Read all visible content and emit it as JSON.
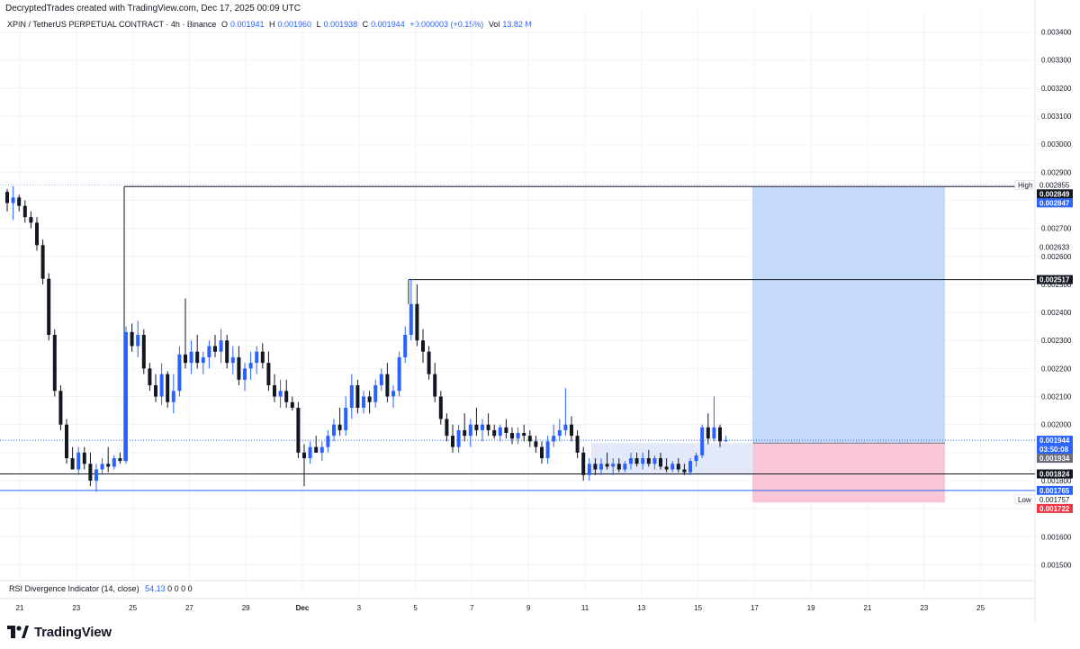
{
  "header": {
    "credit": "DecryptedTrades created with TradingView.com, Dec 17, 2025 00:09 UTC",
    "symbol": "XPIN / TetherUS PERPETUAL CONTRACT · 4h · Binance",
    "o_label": "O",
    "o_value": "0.001941",
    "h_label": "H",
    "h_value": "0.001960",
    "l_label": "L",
    "l_value": "0.001938",
    "c_label": "C",
    "c_value": "0.001944",
    "change": "+0.000003 (+0.15%)",
    "vol_label": "Vol",
    "vol_value": "13.82 M"
  },
  "rsi": {
    "title": "RSI Divergence Indicator (14, close)",
    "value": "54.13",
    "extras": "0 0 0 0"
  },
  "brand": {
    "name": "TradingView"
  },
  "colors": {
    "up": "#2962ff",
    "down": "#131722",
    "target": "#bbd4f7",
    "stop": "#f8bcd0",
    "range": "#dde3f7",
    "price_tag": "#2962ff",
    "dark_tag": "#131722",
    "gray_tag": "#6b6e78",
    "stop_tag": "#f23645"
  },
  "chart_data": {
    "type": "candlestick",
    "timeframe": "4h",
    "ylim": [
      0.00145,
      0.00345
    ],
    "yticks": [
      "0.003400",
      "0.003300",
      "0.003200",
      "0.003100",
      "0.003000",
      "0.002900",
      "0.002800",
      "0.002700",
      "0.002600",
      "0.002500",
      "0.002400",
      "0.002300",
      "0.002200",
      "0.002100",
      "0.002000",
      "0.001900",
      "0.001800",
      "0.001700",
      "0.001600",
      "0.001500"
    ],
    "xticks": [
      "21",
      "23",
      "25",
      "27",
      "29",
      "Dec",
      "3",
      "5",
      "7",
      "9",
      "11",
      "13",
      "15",
      "17",
      "19",
      "21",
      "23",
      "25"
    ],
    "candles": [
      [
        0.00283,
        0.00284,
        0.00276,
        0.00279
      ],
      [
        0.00279,
        0.00285,
        0.00273,
        0.00281
      ],
      [
        0.00281,
        0.00282,
        0.00276,
        0.00278
      ],
      [
        0.00278,
        0.0028,
        0.00272,
        0.00274
      ],
      [
        0.00274,
        0.00276,
        0.0027,
        0.00272
      ],
      [
        0.00272,
        0.00274,
        0.00262,
        0.00264
      ],
      [
        0.00264,
        0.00266,
        0.0025,
        0.00252
      ],
      [
        0.00252,
        0.00254,
        0.0023,
        0.00232
      ],
      [
        0.00232,
        0.00234,
        0.0021,
        0.00212
      ],
      [
        0.00212,
        0.00214,
        0.00198,
        0.002
      ],
      [
        0.002,
        0.00202,
        0.00186,
        0.00188
      ],
      [
        0.00188,
        0.00192,
        0.00184,
        0.00184
      ],
      [
        0.00184,
        0.00192,
        0.00182,
        0.0019
      ],
      [
        0.0019,
        0.00192,
        0.00184,
        0.00186
      ],
      [
        0.00186,
        0.0019,
        0.00178,
        0.0018
      ],
      [
        0.0018,
        0.00186,
        0.00176,
        0.00184
      ],
      [
        0.00184,
        0.00188,
        0.00182,
        0.00186
      ],
      [
        0.00186,
        0.00192,
        0.00183,
        0.00185
      ],
      [
        0.00185,
        0.00189,
        0.00184,
        0.00188
      ],
      [
        0.00188,
        0.0019,
        0.00186,
        0.00187
      ],
      [
        0.00187,
        0.00235,
        0.00186,
        0.00233
      ],
      [
        0.00233,
        0.00236,
        0.00226,
        0.00228
      ],
      [
        0.00228,
        0.00237,
        0.00224,
        0.00232
      ],
      [
        0.00232,
        0.00234,
        0.00218,
        0.0022
      ],
      [
        0.0022,
        0.00222,
        0.00212,
        0.00214
      ],
      [
        0.00214,
        0.00218,
        0.00208,
        0.0021
      ],
      [
        0.0021,
        0.00222,
        0.00207,
        0.00218
      ],
      [
        0.00218,
        0.00219,
        0.00206,
        0.00208
      ],
      [
        0.00208,
        0.00218,
        0.00204,
        0.00212
      ],
      [
        0.00212,
        0.00228,
        0.0021,
        0.00225
      ],
      [
        0.00225,
        0.00245,
        0.0022,
        0.00222
      ],
      [
        0.00222,
        0.0023,
        0.00218,
        0.00226
      ],
      [
        0.00226,
        0.00232,
        0.0022,
        0.00222
      ],
      [
        0.00222,
        0.00226,
        0.00218,
        0.00224
      ],
      [
        0.00224,
        0.0023,
        0.0022,
        0.00228
      ],
      [
        0.00228,
        0.00232,
        0.00224,
        0.00226
      ],
      [
        0.00226,
        0.00234,
        0.00222,
        0.0023
      ],
      [
        0.0023,
        0.00232,
        0.0022,
        0.00222
      ],
      [
        0.00222,
        0.00228,
        0.00218,
        0.00224
      ],
      [
        0.00224,
        0.00228,
        0.00214,
        0.00216
      ],
      [
        0.00216,
        0.00222,
        0.00212,
        0.0022
      ],
      [
        0.0022,
        0.00226,
        0.00216,
        0.00222
      ],
      [
        0.00222,
        0.00228,
        0.00218,
        0.00226
      ],
      [
        0.00226,
        0.00229,
        0.0022,
        0.00222
      ],
      [
        0.00222,
        0.00226,
        0.00212,
        0.00214
      ],
      [
        0.00214,
        0.00218,
        0.00208,
        0.0021
      ],
      [
        0.0021,
        0.00216,
        0.00206,
        0.00212
      ],
      [
        0.00212,
        0.00216,
        0.00206,
        0.00208
      ],
      [
        0.00208,
        0.0021,
        0.00205,
        0.00206
      ],
      [
        0.00206,
        0.00208,
        0.00188,
        0.0019
      ],
      [
        0.0019,
        0.00193,
        0.00178,
        0.00188
      ],
      [
        0.00188,
        0.00194,
        0.00186,
        0.00192
      ],
      [
        0.00192,
        0.00196,
        0.0019,
        0.0019
      ],
      [
        0.0019,
        0.00194,
        0.00187,
        0.00192
      ],
      [
        0.00192,
        0.00198,
        0.0019,
        0.00196
      ],
      [
        0.00196,
        0.00202,
        0.00194,
        0.002
      ],
      [
        0.002,
        0.00206,
        0.00196,
        0.00198
      ],
      [
        0.00198,
        0.0021,
        0.00196,
        0.00206
      ],
      [
        0.00206,
        0.00218,
        0.00202,
        0.00214
      ],
      [
        0.00214,
        0.00216,
        0.00204,
        0.00206
      ],
      [
        0.00206,
        0.00212,
        0.00204,
        0.0021
      ],
      [
        0.0021,
        0.00212,
        0.00204,
        0.00208
      ],
      [
        0.00208,
        0.00216,
        0.00206,
        0.00214
      ],
      [
        0.00214,
        0.0022,
        0.00212,
        0.00218
      ],
      [
        0.00218,
        0.00222,
        0.00208,
        0.0021
      ],
      [
        0.0021,
        0.00214,
        0.00206,
        0.00212
      ],
      [
        0.00212,
        0.00226,
        0.0021,
        0.00224
      ],
      [
        0.00224,
        0.00235,
        0.00222,
        0.00232
      ],
      [
        0.00232,
        0.00252,
        0.0023,
        0.00243
      ],
      [
        0.00243,
        0.0025,
        0.00228,
        0.0023
      ],
      [
        0.0023,
        0.00234,
        0.00222,
        0.00226
      ],
      [
        0.00226,
        0.00228,
        0.00216,
        0.00218
      ],
      [
        0.00218,
        0.00222,
        0.00208,
        0.0021
      ],
      [
        0.0021,
        0.00212,
        0.002,
        0.00202
      ],
      [
        0.00202,
        0.00204,
        0.00194,
        0.00196
      ],
      [
        0.00196,
        0.002,
        0.0019,
        0.00192
      ],
      [
        0.00192,
        0.002,
        0.0019,
        0.00198
      ],
      [
        0.00198,
        0.00204,
        0.00194,
        0.00196
      ],
      [
        0.00196,
        0.00202,
        0.00192,
        0.002
      ],
      [
        0.002,
        0.00206,
        0.00196,
        0.00198
      ],
      [
        0.00198,
        0.00202,
        0.00194,
        0.002
      ],
      [
        0.002,
        0.00204,
        0.00196,
        0.00198
      ],
      [
        0.00198,
        0.002,
        0.00195,
        0.00196
      ],
      [
        0.00196,
        0.002,
        0.00194,
        0.00199
      ],
      [
        0.00199,
        0.00202,
        0.00195,
        0.00197
      ],
      [
        0.00197,
        0.00199,
        0.00193,
        0.00195
      ],
      [
        0.00195,
        0.00199,
        0.00193,
        0.00197
      ],
      [
        0.00197,
        0.002,
        0.00194,
        0.00196
      ],
      [
        0.00196,
        0.00198,
        0.00192,
        0.00194
      ],
      [
        0.00194,
        0.00196,
        0.0019,
        0.00192
      ],
      [
        0.00192,
        0.00194,
        0.00186,
        0.00188
      ],
      [
        0.00188,
        0.00196,
        0.00186,
        0.00194
      ],
      [
        0.00194,
        0.002,
        0.00192,
        0.00196
      ],
      [
        0.00196,
        0.00202,
        0.00194,
        0.00198
      ],
      [
        0.00198,
        0.00213,
        0.00196,
        0.002
      ],
      [
        0.002,
        0.00203,
        0.00194,
        0.00196
      ],
      [
        0.00196,
        0.00198,
        0.00188,
        0.0019
      ],
      [
        0.0019,
        0.00192,
        0.0018,
        0.00182
      ],
      [
        0.00182,
        0.00188,
        0.0018,
        0.00186
      ],
      [
        0.00186,
        0.00188,
        0.00182,
        0.00184
      ],
      [
        0.00184,
        0.00188,
        0.00182,
        0.00186
      ],
      [
        0.00186,
        0.0019,
        0.00184,
        0.00185
      ],
      [
        0.00185,
        0.00188,
        0.00182,
        0.00186
      ],
      [
        0.00186,
        0.00188,
        0.00183,
        0.00184
      ],
      [
        0.00184,
        0.00187,
        0.00183,
        0.00186
      ],
      [
        0.00186,
        0.0019,
        0.00184,
        0.00188
      ],
      [
        0.00188,
        0.0019,
        0.00185,
        0.00186
      ],
      [
        0.00186,
        0.0019,
        0.00184,
        0.00188
      ],
      [
        0.00188,
        0.00191,
        0.00185,
        0.00186
      ],
      [
        0.00186,
        0.00189,
        0.00184,
        0.00188
      ],
      [
        0.00188,
        0.0019,
        0.00184,
        0.00185
      ],
      [
        0.00185,
        0.00188,
        0.00183,
        0.00184
      ],
      [
        0.00184,
        0.00187,
        0.00183,
        0.00186
      ],
      [
        0.00186,
        0.00188,
        0.00183,
        0.00184
      ],
      [
        0.00184,
        0.00186,
        0.00182,
        0.00183
      ],
      [
        0.00183,
        0.00188,
        0.00182,
        0.00187
      ],
      [
        0.00187,
        0.0019,
        0.00185,
        0.00189
      ],
      [
        0.00189,
        0.002,
        0.00188,
        0.00199
      ],
      [
        0.00199,
        0.00204,
        0.00193,
        0.00195
      ],
      [
        0.00195,
        0.0021,
        0.00194,
        0.00199
      ],
      [
        0.00199,
        0.002,
        0.00192,
        0.00194
      ],
      [
        0.001941,
        0.00196,
        0.001938,
        0.001944
      ]
    ],
    "horizontal_levels": [
      "0.002849",
      "0.002517",
      "0.001824",
      "0.001765"
    ],
    "price_axis_labels": [
      {
        "text": "High",
        "value": "0.002855",
        "style": "plain"
      },
      {
        "text": "",
        "value": "0.002849",
        "style": "dark"
      },
      {
        "text": "",
        "value": "0.002847",
        "style": "blue"
      },
      {
        "text": "",
        "value": "0.002633",
        "style": "plain"
      },
      {
        "text": "",
        "value": "0.002517",
        "style": "dark"
      },
      {
        "text": "",
        "value": "0.001944",
        "style": "blue"
      },
      {
        "text": "",
        "value": "03:50:08",
        "style": "blue"
      },
      {
        "text": "",
        "value": "0.001934",
        "style": "gray"
      },
      {
        "text": "",
        "value": "0.001824",
        "style": "dark"
      },
      {
        "text": "",
        "value": "0.001765",
        "style": "blue"
      },
      {
        "text": "Low",
        "value": "0.001757",
        "style": "plain"
      },
      {
        "text": "",
        "value": "0.001722",
        "style": "red"
      }
    ],
    "position": {
      "type": "long",
      "entry": 0.001934,
      "target": 0.002847,
      "stop": 0.001722
    },
    "range_box": {
      "top": 0.001934,
      "bottom": 0.00182
    }
  }
}
